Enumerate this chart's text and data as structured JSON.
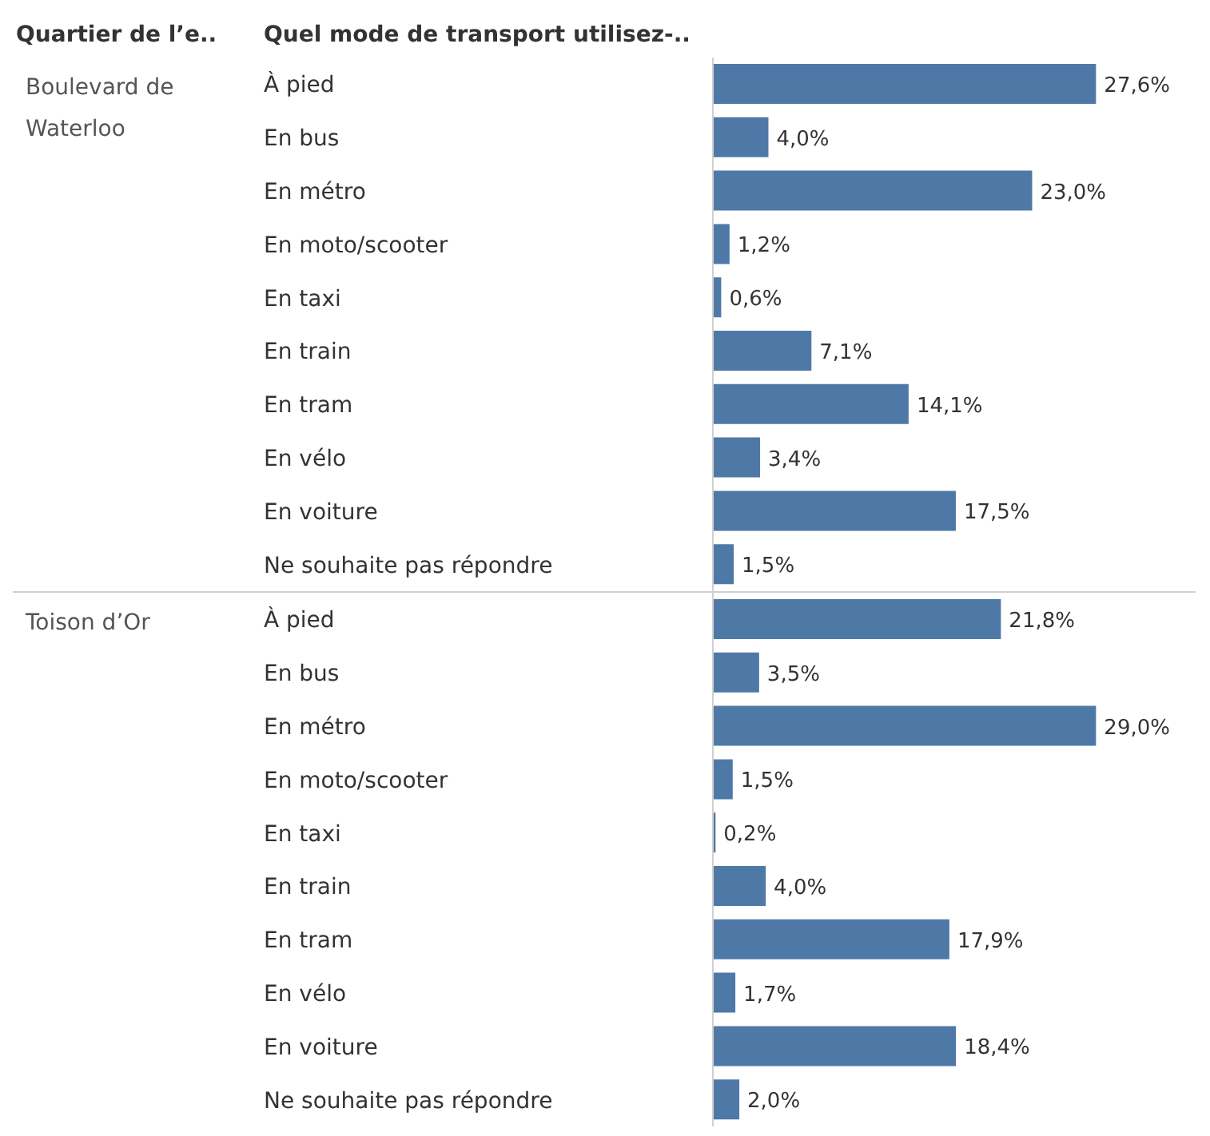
{
  "chart_data": [
    {
      "type": "bar",
      "orientation": "horizontal",
      "title": "Boulevard de Waterloo",
      "annotations": [
        "Quartier de l’e..",
        "Quel mode de transport utilisez-.."
      ],
      "categories": [
        "À pied",
        "En bus",
        "En métro",
        "En moto/scooter",
        "En taxi",
        "En train",
        "En tram",
        "En vélo",
        "En voiture",
        "Ne souhaite pas répondre"
      ],
      "values": [
        27.6,
        4.0,
        23.0,
        1.2,
        0.6,
        7.1,
        14.1,
        3.4,
        17.5,
        1.5
      ],
      "value_labels": [
        "27,6%",
        "4,0%",
        "23,0%",
        "1,2%",
        "0,6%",
        "7,1%",
        "14,1%",
        "3,4%",
        "17,5%",
        "1,5%"
      ],
      "color": "#4e79a7",
      "tick_labels": "y",
      "legend": false
    },
    {
      "type": "bar",
      "orientation": "horizontal",
      "title": "Toison d’Or",
      "categories": [
        "À pied",
        "En bus",
        "En métro",
        "En moto/scooter",
        "En taxi",
        "En train",
        "En tram",
        "En vélo",
        "En voiture",
        "Ne souhaite pas répondre"
      ],
      "values": [
        21.8,
        3.5,
        29.0,
        1.5,
        0.2,
        4.0,
        17.9,
        1.7,
        18.4,
        2.0
      ],
      "value_labels": [
        "21,8%",
        "3,5%",
        "29,0%",
        "1,5%",
        "0,2%",
        "4,0%",
        "17,9%",
        "1,7%",
        "18,4%",
        "2,0%"
      ],
      "color": "#4e79a7",
      "tick_labels": "y",
      "legend": false
    }
  ]
}
